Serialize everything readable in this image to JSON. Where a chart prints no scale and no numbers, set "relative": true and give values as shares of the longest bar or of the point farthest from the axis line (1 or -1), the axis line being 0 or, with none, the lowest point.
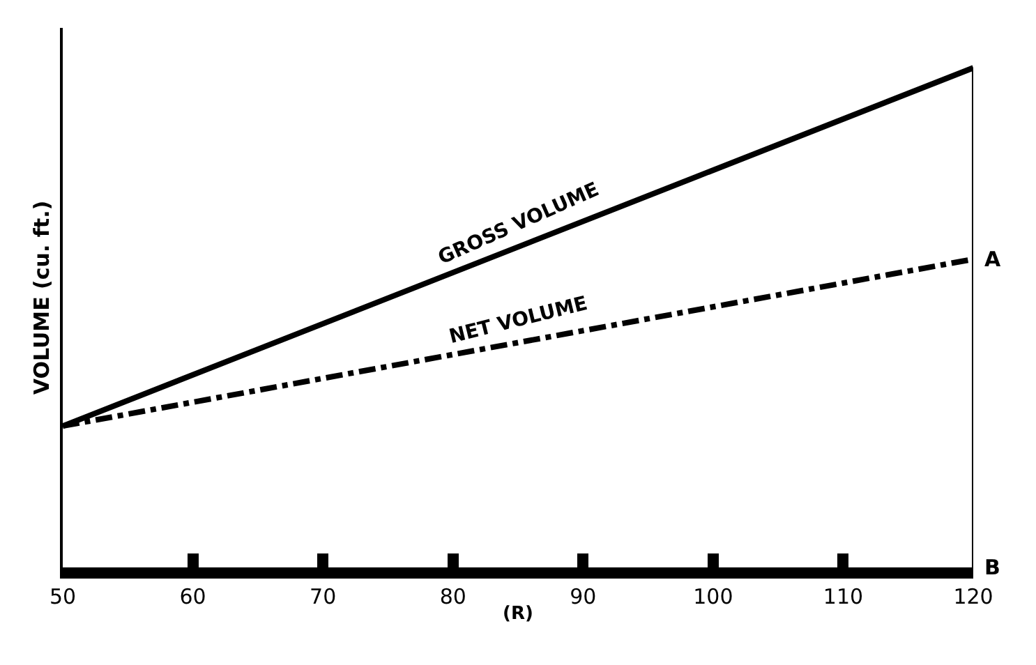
{
  "chart_data": {
    "type": "line",
    "relative": true,
    "ylabel": "VOLUME (cu. ft.)",
    "xlabel": "(R)",
    "x": [
      50,
      120
    ],
    "xlim": [
      50,
      120
    ],
    "xticks": [
      50,
      60,
      70,
      80,
      90,
      100,
      110,
      120
    ],
    "series": [
      {
        "name": "GROSS VOLUME",
        "color": "#000000",
        "values": [
          0.283,
          1
        ],
        "line_style": "solid"
      },
      {
        "name": "NET VOLUME",
        "color": "#000000",
        "values": [
          0.283,
          0.617
        ],
        "line_style": "dashed"
      }
    ],
    "ref_lines": [
      {
        "axis": "x",
        "value": 120,
        "color": "#000000",
        "line_style": "solid"
      }
    ],
    "annotations": [
      {
        "text": "A",
        "x": 120,
        "y": 0.617
      },
      {
        "text": "B",
        "x": 120,
        "y": 0
      }
    ],
    "legend": false,
    "marker": "none"
  }
}
